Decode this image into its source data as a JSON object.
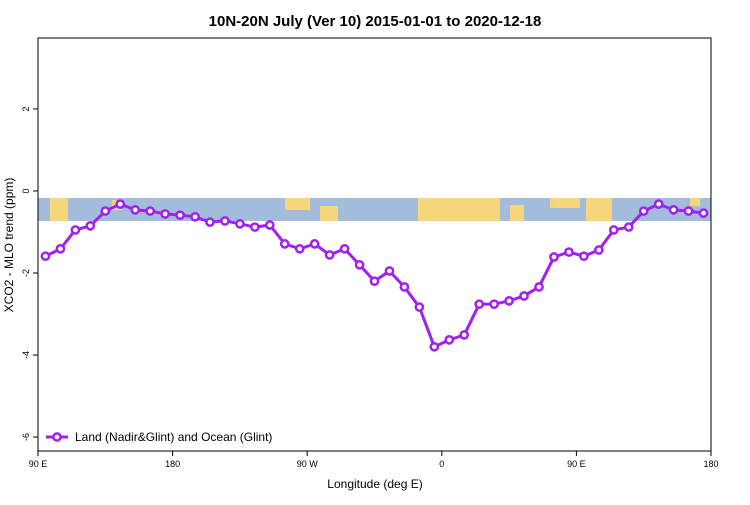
{
  "chart_data": {
    "type": "line",
    "title": "10N-20N July (Ver 10)   2015-01-01 to 2020-12-18",
    "x_label": "Longitude (deg E)",
    "y_label": "XCO2 - MLO trend (ppm)",
    "x": [
      95,
      105,
      115,
      125,
      135,
      145,
      155,
      165,
      175,
      185,
      195,
      205,
      215,
      225,
      235,
      245,
      255,
      265,
      275,
      285,
      295,
      305,
      315,
      325,
      335,
      345,
      355,
      365,
      375,
      385,
      395,
      405,
      415,
      425,
      435,
      445,
      455,
      465,
      475,
      485,
      495,
      505,
      515,
      525,
      535
    ],
    "series": [
      {
        "name": "Land (Nadir&Glint) and Ocean (Glint)",
        "color": "#a020f0",
        "values": [
          -1.59,
          -1.41,
          -0.95,
          -0.85,
          -0.49,
          -0.32,
          -0.46,
          -0.49,
          -0.56,
          -0.59,
          -0.63,
          -0.76,
          -0.73,
          -0.8,
          -0.88,
          -0.83,
          -1.29,
          -1.41,
          -1.29,
          -1.56,
          -1.41,
          -1.8,
          -2.2,
          -1.95,
          -2.34,
          -2.83,
          -3.8,
          -3.63,
          -3.51,
          -2.76,
          -2.76,
          -2.68,
          -2.56,
          -2.34,
          -1.61,
          -1.49,
          -1.59,
          -1.44,
          -0.95,
          -0.88,
          -0.49,
          -0.32,
          -0.46,
          -0.49,
          -0.54
        ]
      }
    ],
    "xlim": [
      90,
      540
    ],
    "xticks": [
      {
        "value": 90,
        "label": "90 E"
      },
      {
        "value": 180,
        "label": "180"
      },
      {
        "value": 270,
        "label": "90 W"
      },
      {
        "value": 360,
        "label": "0"
      },
      {
        "value": 450,
        "label": "90 E"
      },
      {
        "value": 540,
        "label": "180"
      }
    ],
    "ylim": [
      -6.34,
      3.73
    ],
    "yticks": [
      -6,
      -4,
      -2,
      0,
      2
    ],
    "legend": "bottomleft"
  }
}
